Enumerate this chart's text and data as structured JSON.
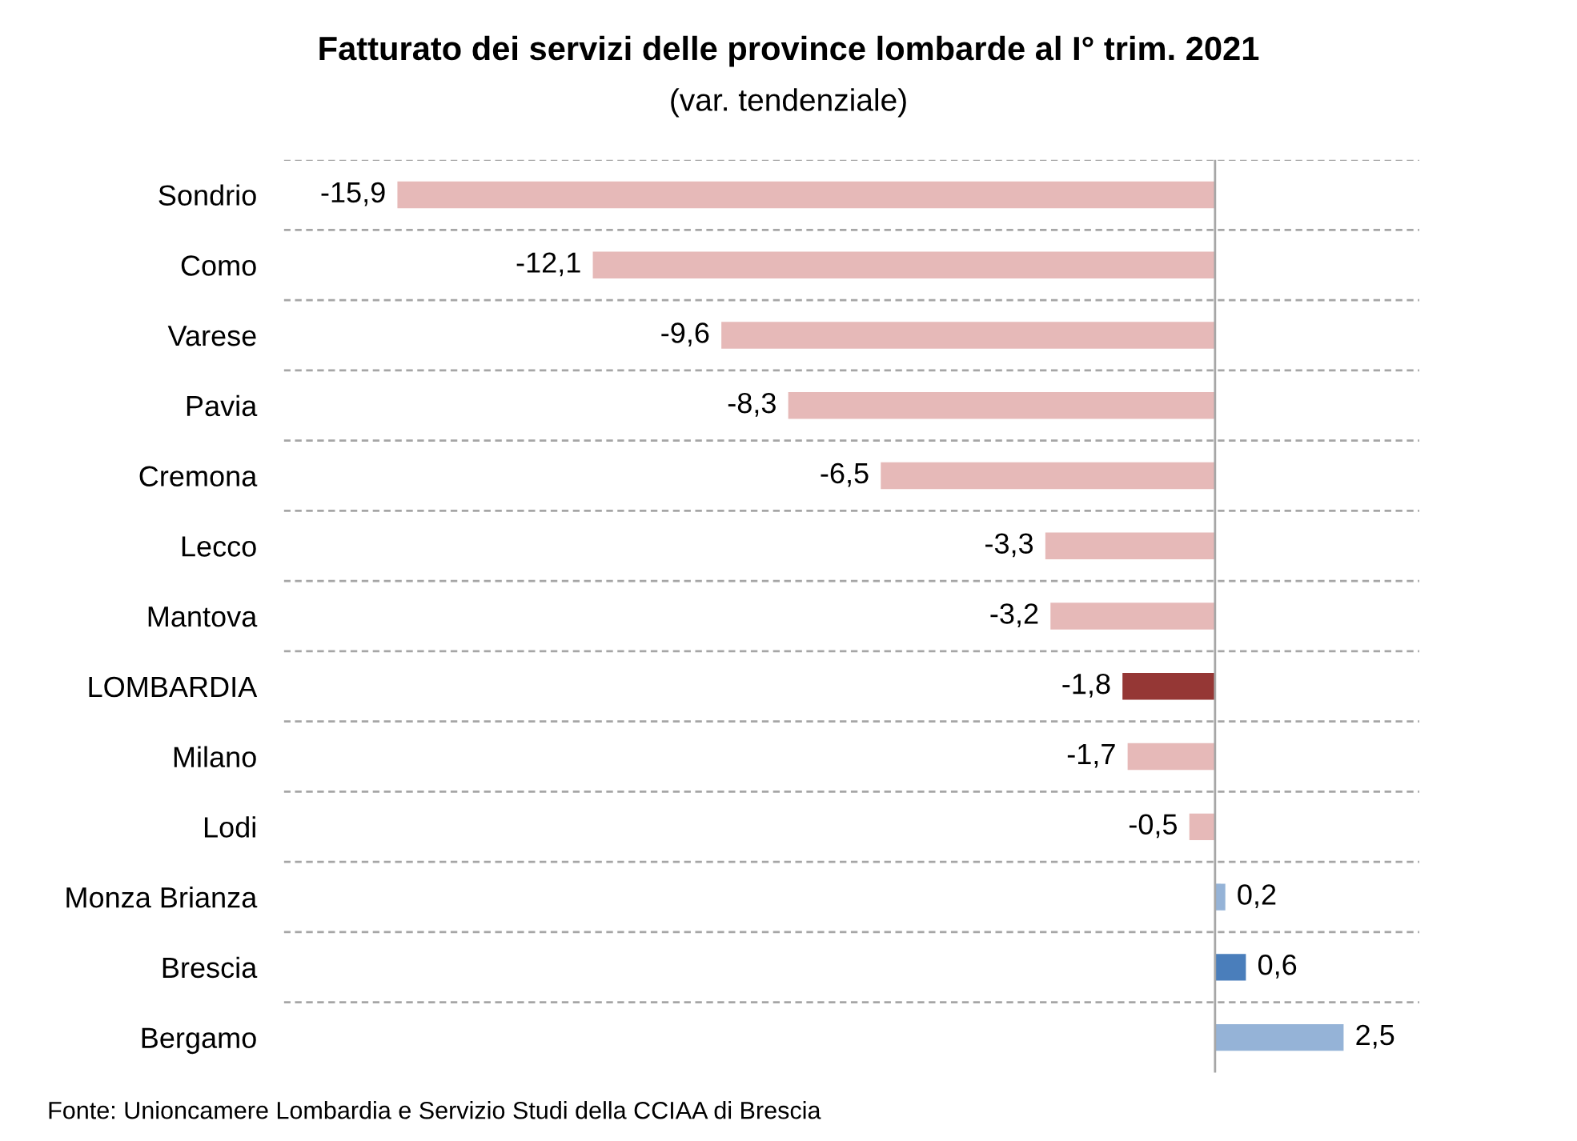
{
  "chart_data": {
    "type": "bar",
    "orientation": "horizontal",
    "title": "Fatturato dei servizi delle province lombarde al I° trim. 2021",
    "subtitle": "(var. tendenziale)",
    "categories": [
      "Sondrio",
      "Como",
      "Varese",
      "Pavia",
      "Cremona",
      "Lecco",
      "Mantova",
      "LOMBARDIA",
      "Milano",
      "Lodi",
      "Monza Brianza",
      "Brescia",
      "Bergamo"
    ],
    "values": [
      -15.9,
      -12.1,
      -9.6,
      -8.3,
      -6.5,
      -3.3,
      -3.2,
      -1.8,
      -1.7,
      -0.5,
      0.2,
      0.6,
      2.5
    ],
    "value_labels": [
      "-15,9",
      "-12,1",
      "-9,6",
      "-8,3",
      "-6,5",
      "-3,3",
      "-3,2",
      "-1,8",
      "-1,7",
      "-0,5",
      "0,2",
      "0,6",
      "2,5"
    ],
    "colors": [
      "#e6b9b8",
      "#e6b9b8",
      "#e6b9b8",
      "#e6b9b8",
      "#e6b9b8",
      "#e6b9b8",
      "#e6b9b8",
      "#953735",
      "#e6b9b8",
      "#e6b9b8",
      "#95b3d7",
      "#4a7ebb",
      "#95b3d7"
    ],
    "grid": "y",
    "legend": false,
    "annotations": [
      "Fonte: Unioncamere Lombardia e Servizio Studi della CCIAA di Brescia"
    ]
  }
}
